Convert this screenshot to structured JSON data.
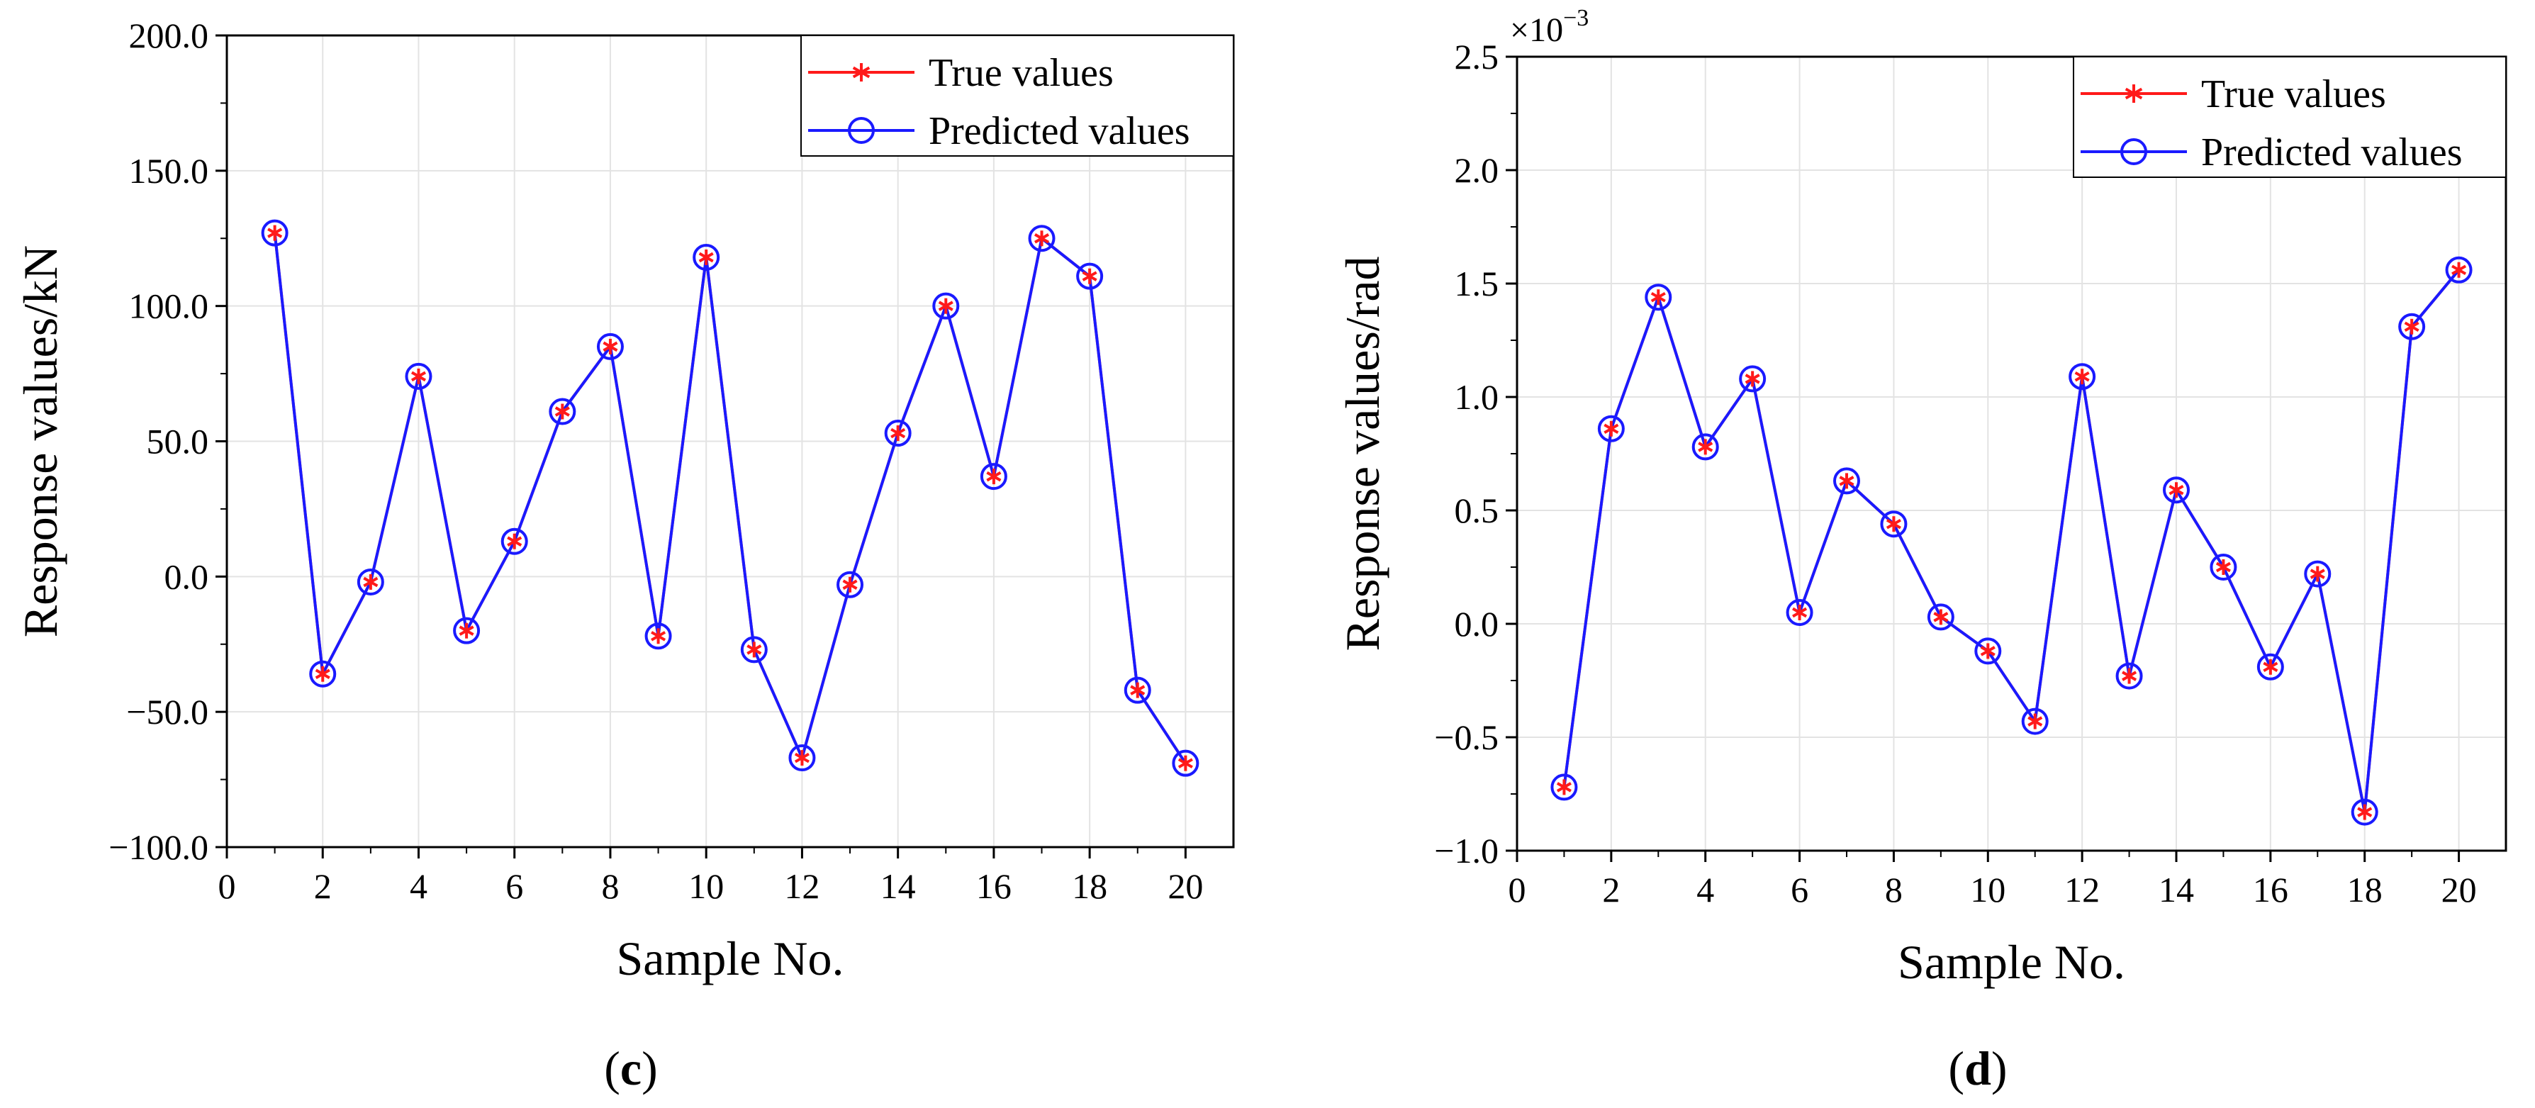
{
  "chart_data": [
    {
      "type": "line",
      "panel_label": "c",
      "xlabel": "Sample No.",
      "ylabel": "Response values/kN",
      "xlim": [
        0,
        21
      ],
      "ylim": [
        -100,
        200
      ],
      "xticks": [
        0,
        2,
        4,
        6,
        8,
        10,
        12,
        14,
        16,
        18,
        20
      ],
      "xtick_labels": [
        "0",
        "2",
        "4",
        "6",
        "8",
        "10",
        "12",
        "14",
        "16",
        "18",
        "20"
      ],
      "yticks": [
        -100,
        -50,
        0,
        50,
        100,
        150,
        200
      ],
      "ytick_labels": [
        "−100.0",
        "−50.0",
        "0.0",
        "50.0",
        "100.0",
        "150.0",
        "200.0"
      ],
      "grid": true,
      "legend_position": "top-right",
      "x": [
        1,
        2,
        3,
        4,
        5,
        6,
        7,
        8,
        9,
        10,
        11,
        12,
        13,
        14,
        15,
        16,
        17,
        18,
        19,
        20
      ],
      "series": [
        {
          "name": "True values",
          "color": "#ff1a1a",
          "marker": "asterisk",
          "values": [
            127,
            -36,
            -2,
            74,
            -20,
            13,
            61,
            85,
            -22,
            118,
            -27,
            -67,
            -3,
            53,
            100,
            37,
            125,
            111,
            -42,
            -69
          ]
        },
        {
          "name": "Predicted values",
          "color": "#1a1aff",
          "marker": "circle",
          "values": [
            127,
            -36,
            -2,
            74,
            -20,
            13,
            61,
            85,
            -22,
            118,
            -27,
            -67,
            -3,
            53,
            100,
            37,
            125,
            111,
            -42,
            -69
          ]
        }
      ]
    },
    {
      "type": "line",
      "panel_label": "d",
      "xlabel": "Sample No.",
      "ylabel": "Response values/rad",
      "axis_scale": {
        "base": "×10",
        "exponent": "−3"
      },
      "xlim": [
        0,
        21
      ],
      "ylim": [
        -1.0,
        2.5
      ],
      "xticks": [
        0,
        2,
        4,
        6,
        8,
        10,
        12,
        14,
        16,
        18,
        20
      ],
      "xtick_labels": [
        "0",
        "2",
        "4",
        "6",
        "8",
        "10",
        "12",
        "14",
        "16",
        "18",
        "20"
      ],
      "yticks": [
        -1.0,
        -0.5,
        0.0,
        0.5,
        1.0,
        1.5,
        2.0,
        2.5
      ],
      "ytick_labels": [
        "−1.0",
        "−0.5",
        "0.0",
        "0.5",
        "1.0",
        "1.5",
        "2.0",
        "2.5"
      ],
      "grid": true,
      "legend_position": "top-right",
      "x": [
        1,
        2,
        3,
        4,
        5,
        6,
        7,
        8,
        9,
        10,
        11,
        12,
        13,
        14,
        15,
        16,
        17,
        18,
        19,
        20
      ],
      "series": [
        {
          "name": "True values",
          "color": "#ff1a1a",
          "marker": "asterisk",
          "values": [
            -0.72,
            0.86,
            1.44,
            0.78,
            1.08,
            0.05,
            0.63,
            0.44,
            0.03,
            -0.12,
            -0.43,
            1.09,
            -0.23,
            0.59,
            0.25,
            -0.19,
            0.22,
            -0.83,
            1.31,
            1.56
          ]
        },
        {
          "name": "Predicted values",
          "color": "#1a1aff",
          "marker": "circle",
          "values": [
            -0.72,
            0.86,
            1.44,
            0.78,
            1.08,
            0.05,
            0.63,
            0.44,
            0.03,
            -0.12,
            -0.43,
            1.09,
            -0.23,
            0.59,
            0.25,
            -0.19,
            0.22,
            -0.83,
            1.31,
            1.56
          ]
        }
      ]
    }
  ]
}
